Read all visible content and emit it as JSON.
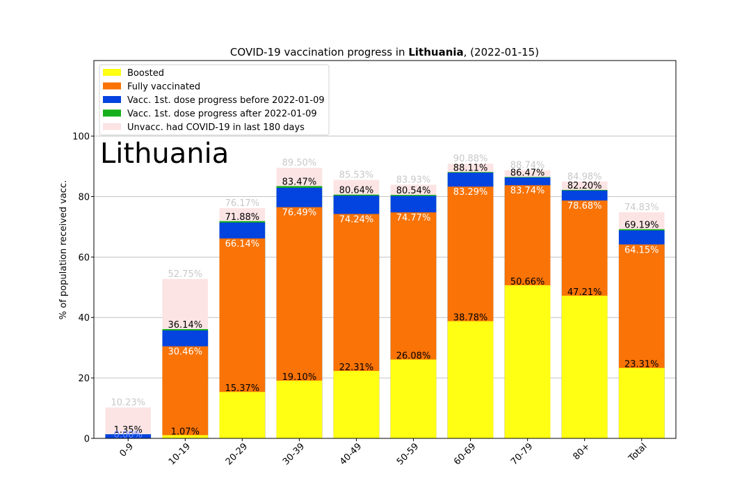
{
  "chart_data": {
    "type": "bar",
    "title_prefix": "COVID-19 vaccination progress in ",
    "title_country": "Lithuania",
    "title_suffix": ", (2022-01-15)",
    "ylabel": "% of population received vacc.",
    "xlabel": "",
    "big_label": "Lithuania",
    "ylim": [
      0,
      125
    ],
    "yticks": [
      0,
      20,
      40,
      60,
      80,
      100
    ],
    "grid": "horizontal",
    "legend_placement": "top-left",
    "categories": [
      "0-9",
      "10-19",
      "20-29",
      "30-39",
      "40-49",
      "50-59",
      "60-69",
      "70-79",
      "80+",
      "Total"
    ],
    "series": [
      {
        "name": "Boosted",
        "color": "#ffff14",
        "values": [
          0.0,
          1.07,
          15.37,
          19.1,
          22.31,
          26.08,
          38.78,
          50.66,
          47.21,
          23.31
        ]
      },
      {
        "name": "Fully vaccinated",
        "color": "#f97306",
        "values": [
          0.0,
          30.46,
          66.14,
          76.49,
          74.24,
          74.77,
          83.29,
          83.74,
          78.68,
          64.15
        ]
      },
      {
        "name": "Vacc. 1st. dose progress before 2022-01-09",
        "color": "#0343df",
        "values": [
          1.35,
          35.7,
          71.4,
          82.9,
          80.3,
          80.2,
          87.9,
          86.3,
          82.0,
          68.8
        ]
      },
      {
        "name": "Vacc. 1st. dose progress after 2022-01-09",
        "color": "#15b01a",
        "values": [
          1.35,
          36.14,
          71.88,
          83.47,
          80.64,
          80.54,
          88.11,
          86.47,
          82.2,
          69.19
        ]
      },
      {
        "name": "Unvacc. had COVID-19 in last 180 days",
        "color": "#fce4e4",
        "values": [
          10.23,
          52.75,
          76.17,
          89.5,
          85.53,
          83.93,
          90.88,
          88.74,
          84.98,
          74.83
        ]
      }
    ],
    "data_labels": {
      "boosted": [
        "",
        "1.07%",
        "15.37%",
        "19.10%",
        "22.31%",
        "26.08%",
        "38.78%",
        "50.66%",
        "47.21%",
        "23.31%"
      ],
      "fully": [
        "0.00%",
        "30.46%",
        "66.14%",
        "76.49%",
        "74.24%",
        "74.77%",
        "83.29%",
        "83.74%",
        "78.68%",
        "64.15%"
      ],
      "first_dose": [
        "1.35%",
        "36.14%",
        "71.88%",
        "83.47%",
        "80.64%",
        "80.54%",
        "88.11%",
        "86.47%",
        "82.20%",
        "69.19%"
      ],
      "covid": [
        "10.23%",
        "52.75%",
        "76.17%",
        "89.50%",
        "85.53%",
        "83.93%",
        "90.88%",
        "88.74%",
        "84.98%",
        "74.83%"
      ]
    }
  }
}
